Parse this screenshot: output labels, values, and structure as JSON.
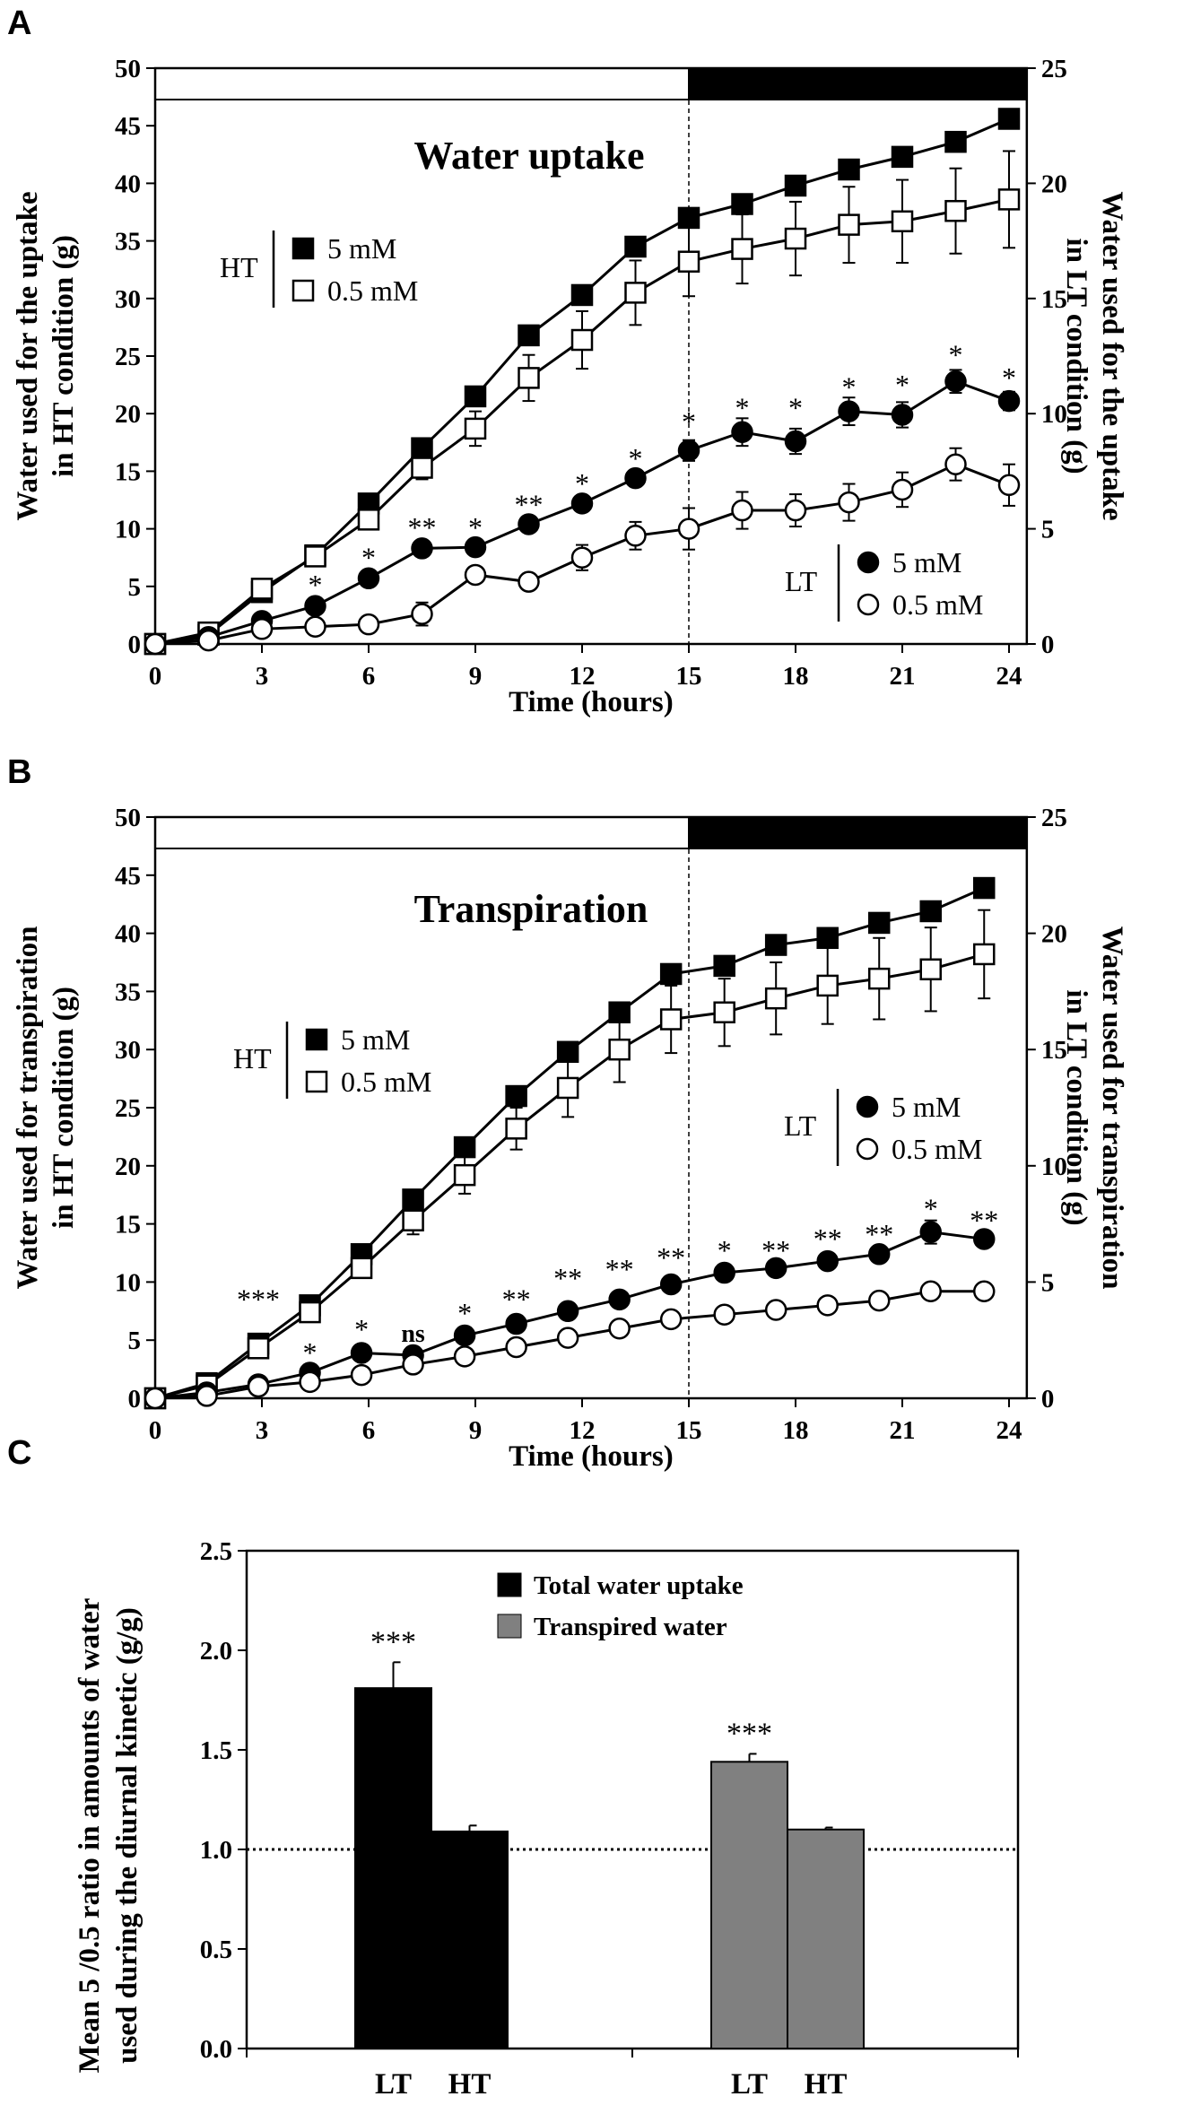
{
  "chart_data": [
    {
      "panel": "A",
      "type": "line",
      "title": "Water uptake",
      "xlabel": "Time (hours)",
      "ylabel_left": "Water used for the uptake\nin HT condition (g)",
      "ylabel_right": "Water used for the uptake\nin LT condition (g)",
      "xlim": [
        0,
        24
      ],
      "xticks": [
        "0",
        "3",
        "6",
        "9",
        "12",
        "15",
        "18",
        "21",
        "24"
      ],
      "ylim_left": [
        0,
        50
      ],
      "yticks_left": [
        "0",
        "5",
        "10",
        "15",
        "20",
        "25",
        "30",
        "35",
        "40",
        "45",
        "50"
      ],
      "ylim_right": [
        0,
        25
      ],
      "yticks_right": [
        "0",
        "5",
        "10",
        "15",
        "20",
        "25"
      ],
      "photoperiod": {
        "light_start": 0,
        "dark_start": 15,
        "end": 24.5
      },
      "legend": [
        {
          "group": "HT",
          "entries": [
            "5 mM",
            "0.5 mM"
          ]
        },
        {
          "group": "LT",
          "entries": [
            "5 mM",
            "0.5 mM"
          ]
        }
      ],
      "series": [
        {
          "name": "HT 5 mM",
          "axis": "left",
          "marker": "filled-square",
          "x": [
            0,
            1.5,
            3,
            4.5,
            6,
            7.5,
            9,
            10.5,
            12,
            13.5,
            15,
            16.5,
            18,
            19.5,
            21,
            22.5,
            24
          ],
          "y": [
            0,
            0.8,
            4.5,
            7.7,
            12.2,
            17,
            21.5,
            26.8,
            30.3,
            34.5,
            37,
            38.2,
            39.8,
            41.2,
            42.3,
            43.6,
            45.6
          ],
          "err": [
            0,
            0,
            0,
            0,
            0,
            0,
            0,
            0,
            0,
            0,
            0,
            0,
            0,
            0,
            0,
            0,
            0
          ]
        },
        {
          "name": "HT 0.5 mM",
          "axis": "left",
          "marker": "open-square",
          "x": [
            0,
            1.5,
            3,
            4.5,
            6,
            7.5,
            9,
            10.5,
            12,
            13.5,
            15,
            16.5,
            18,
            19.5,
            21,
            22.5,
            24
          ],
          "y": [
            0,
            1,
            4.8,
            7.6,
            10.8,
            15.3,
            18.7,
            23.1,
            26.4,
            30.5,
            33.2,
            34.3,
            35.2,
            36.4,
            36.7,
            37.6,
            38.6
          ],
          "err": [
            0,
            0,
            0,
            0,
            0.6,
            1,
            1.5,
            2,
            2.5,
            2.8,
            3,
            3,
            3.2,
            3.3,
            3.6,
            3.7,
            4.2
          ]
        },
        {
          "name": "LT 5 mM",
          "axis": "right",
          "marker": "filled-circle",
          "x": [
            0,
            1.5,
            3,
            4.5,
            6,
            7.5,
            9,
            10.5,
            12,
            13.5,
            15,
            16.5,
            18,
            19.5,
            21,
            22.5,
            24
          ],
          "y": [
            0,
            0.3,
            1,
            1.65,
            2.85,
            4.15,
            4.2,
            5.2,
            6.1,
            7.2,
            8.4,
            9.2,
            8.8,
            10.1,
            9.95,
            11.4,
            10.55
          ],
          "err": [
            0,
            0,
            0,
            0,
            0.3,
            0,
            0,
            0,
            0,
            0,
            0.45,
            0.6,
            0.55,
            0.6,
            0.55,
            0.5,
            0.4
          ]
        },
        {
          "name": "LT 0.5 mM",
          "axis": "right",
          "marker": "open-circle",
          "x": [
            0,
            1.5,
            3,
            4.5,
            6,
            7.5,
            9,
            10.5,
            12,
            13.5,
            15,
            16.5,
            18,
            19.5,
            21,
            22.5,
            24
          ],
          "y": [
            0,
            0.15,
            0.65,
            0.75,
            0.85,
            1.3,
            3,
            2.7,
            3.75,
            4.7,
            5,
            5.8,
            5.8,
            6.15,
            6.7,
            7.8,
            6.9
          ],
          "err": [
            0,
            0,
            0,
            0,
            0,
            0.5,
            0,
            0,
            0.55,
            0.6,
            0.9,
            0.8,
            0.7,
            0.8,
            0.75,
            0.7,
            0.9
          ]
        }
      ],
      "annotations": [
        {
          "x": 4.5,
          "label": "*",
          "level": 2.6
        },
        {
          "x": 6,
          "label": "*",
          "level": 3.8
        },
        {
          "x": 7.5,
          "label": "**",
          "level": 5.1
        },
        {
          "x": 9,
          "label": "*",
          "level": 5.1
        },
        {
          "x": 10.5,
          "label": "**",
          "level": 6.1
        },
        {
          "x": 12,
          "label": "*",
          "level": 7.0
        },
        {
          "x": 13.5,
          "label": "*",
          "level": 8.1
        },
        {
          "x": 15,
          "label": "*",
          "level": 9.7
        },
        {
          "x": 16.5,
          "label": "*",
          "level": 10.3
        },
        {
          "x": 18,
          "label": "*",
          "level": 10.3
        },
        {
          "x": 19.5,
          "label": "*",
          "level": 11.2
        },
        {
          "x": 21,
          "label": "*",
          "level": 11.3
        },
        {
          "x": 22.5,
          "label": "*",
          "level": 12.6
        },
        {
          "x": 24,
          "label": "*",
          "level": 11.6
        }
      ]
    },
    {
      "panel": "B",
      "type": "line",
      "title": "Transpiration",
      "xlabel": "Time (hours)",
      "ylabel_left": "Water used for transpiration\nin HT condition (g)",
      "ylabel_right": "Water used for transpiration\nin LT condition (g)",
      "xlim": [
        0,
        24
      ],
      "xticks": [
        "0",
        "3",
        "6",
        "9",
        "12",
        "15",
        "18",
        "21",
        "24"
      ],
      "ylim_left": [
        0,
        50
      ],
      "yticks_left": [
        "0",
        "5",
        "10",
        "15",
        "20",
        "25",
        "30",
        "35",
        "40",
        "45",
        "50"
      ],
      "ylim_right": [
        0,
        25
      ],
      "yticks_right": [
        "0",
        "5",
        "10",
        "15",
        "20",
        "25"
      ],
      "photoperiod": {
        "light_start": 0,
        "dark_start": 15,
        "end": 24.5
      },
      "legend": [
        {
          "group": "HT",
          "entries": [
            "5 mM",
            "0.5 mM"
          ]
        },
        {
          "group": "LT",
          "entries": [
            "5 mM",
            "0.5 mM"
          ]
        }
      ],
      "series": [
        {
          "name": "HT 5 mM",
          "axis": "left",
          "marker": "filled-square",
          "x": [
            0,
            1.45,
            2.9,
            4.35,
            5.8,
            7.25,
            8.7,
            10.15,
            11.6,
            13.05,
            14.5,
            16,
            17.45,
            18.9,
            20.35,
            21.8,
            23.3
          ],
          "y": [
            0,
            1.3,
            4.7,
            8,
            12.4,
            17.1,
            21.6,
            26,
            29.8,
            33.2,
            36.5,
            37.2,
            39,
            39.6,
            40.9,
            41.9,
            43.9
          ],
          "err": [
            0,
            0,
            0,
            0,
            0,
            0,
            0,
            0,
            0,
            0,
            0,
            0,
            0,
            0,
            0,
            0,
            0
          ]
        },
        {
          "name": "HT 0.5 mM",
          "axis": "left",
          "marker": "open-square",
          "x": [
            0,
            1.45,
            2.9,
            4.35,
            5.8,
            7.25,
            8.7,
            10.15,
            11.6,
            13.05,
            14.5,
            16,
            17.45,
            18.9,
            20.35,
            21.8,
            23.3
          ],
          "y": [
            0,
            1.1,
            4.3,
            7.4,
            11.2,
            15.3,
            19.2,
            23.2,
            26.7,
            30,
            32.6,
            33.2,
            34.4,
            35.5,
            36.1,
            36.9,
            38.2
          ],
          "err": [
            0,
            0,
            0,
            0,
            0.5,
            1.2,
            1.6,
            1.8,
            2.5,
            2.8,
            2.9,
            2.9,
            3.1,
            3.3,
            3.5,
            3.6,
            3.8
          ]
        },
        {
          "name": "LT 5 mM",
          "axis": "right",
          "marker": "filled-circle",
          "x": [
            0,
            1.45,
            2.9,
            4.35,
            5.8,
            7.25,
            8.7,
            10.15,
            11.6,
            13.05,
            14.5,
            16,
            17.45,
            18.9,
            20.35,
            21.8,
            23.3
          ],
          "y": [
            0,
            0.25,
            0.6,
            1.1,
            1.95,
            1.85,
            2.7,
            3.2,
            3.75,
            4.25,
            4.9,
            5.4,
            5.6,
            5.9,
            6.2,
            7.15,
            6.85
          ],
          "err": [
            0,
            0,
            0,
            0,
            0,
            0,
            0,
            0,
            0,
            0,
            0,
            0,
            0,
            0,
            0,
            0.5,
            0.35
          ]
        },
        {
          "name": "LT 0.5 mM",
          "axis": "right",
          "marker": "open-circle",
          "x": [
            0,
            1.45,
            2.9,
            4.35,
            5.8,
            7.25,
            8.7,
            10.15,
            11.6,
            13.05,
            14.5,
            16,
            17.45,
            18.9,
            20.35,
            21.8,
            23.3
          ],
          "y": [
            0,
            0.1,
            0.5,
            0.7,
            1,
            1.45,
            1.8,
            2.2,
            2.6,
            3,
            3.4,
            3.6,
            3.8,
            4,
            4.2,
            4.6,
            4.6
          ],
          "err": [
            0,
            0,
            0,
            0,
            0,
            0,
            0,
            0,
            0,
            0,
            0,
            0,
            0,
            0,
            0,
            0,
            0
          ]
        }
      ],
      "annotations": [
        {
          "x": 2.9,
          "label": "***",
          "level": 4.3
        },
        {
          "x": 4.35,
          "label": "*",
          "level": 2.0
        },
        {
          "x": 5.8,
          "label": "*",
          "level": 3.0
        },
        {
          "x": 7.25,
          "label": "ns",
          "level": 2.9
        },
        {
          "x": 8.7,
          "label": "*",
          "level": 3.7
        },
        {
          "x": 10.15,
          "label": "**",
          "level": 4.3
        },
        {
          "x": 11.6,
          "label": "**",
          "level": 5.2
        },
        {
          "x": 13.05,
          "label": "**",
          "level": 5.6
        },
        {
          "x": 14.5,
          "label": "**",
          "level": 6.1
        },
        {
          "x": 16,
          "label": "*",
          "level": 6.4
        },
        {
          "x": 17.45,
          "label": "**",
          "level": 6.4
        },
        {
          "x": 18.9,
          "label": "**",
          "level": 6.9
        },
        {
          "x": 20.35,
          "label": "**",
          "level": 7.1
        },
        {
          "x": 21.8,
          "label": "*",
          "level": 8.2
        },
        {
          "x": 23.3,
          "label": "**",
          "level": 7.7
        }
      ]
    },
    {
      "panel": "C",
      "type": "bar",
      "ylabel": "Mean 5 /0.5 ratio in  amounts of water\nused during the diurnal kinetic (g/g)",
      "ylim": [
        0,
        2.5
      ],
      "yticks": [
        "0.0",
        "0.5",
        "1.0",
        "1.5",
        "2.0",
        "2.5"
      ],
      "reference_line": 1.0,
      "categories": [
        "LT",
        "HT",
        "LT",
        "HT"
      ],
      "series": [
        {
          "name": "Total water uptake",
          "color": "#000000",
          "values": [
            1.81,
            1.09
          ],
          "err": [
            0.13,
            0.03
          ],
          "positions": [
            0,
            1
          ]
        },
        {
          "name": "Transpired water",
          "color": "#808080",
          "values": [
            1.44,
            1.1
          ],
          "err": [
            0.04,
            0.01
          ],
          "positions": [
            2,
            3
          ]
        }
      ],
      "annotations": [
        {
          "bar": 0,
          "label": "***"
        },
        {
          "bar": 2,
          "label": "***"
        }
      ]
    }
  ],
  "panel_letters": [
    "A",
    "B",
    "C"
  ]
}
